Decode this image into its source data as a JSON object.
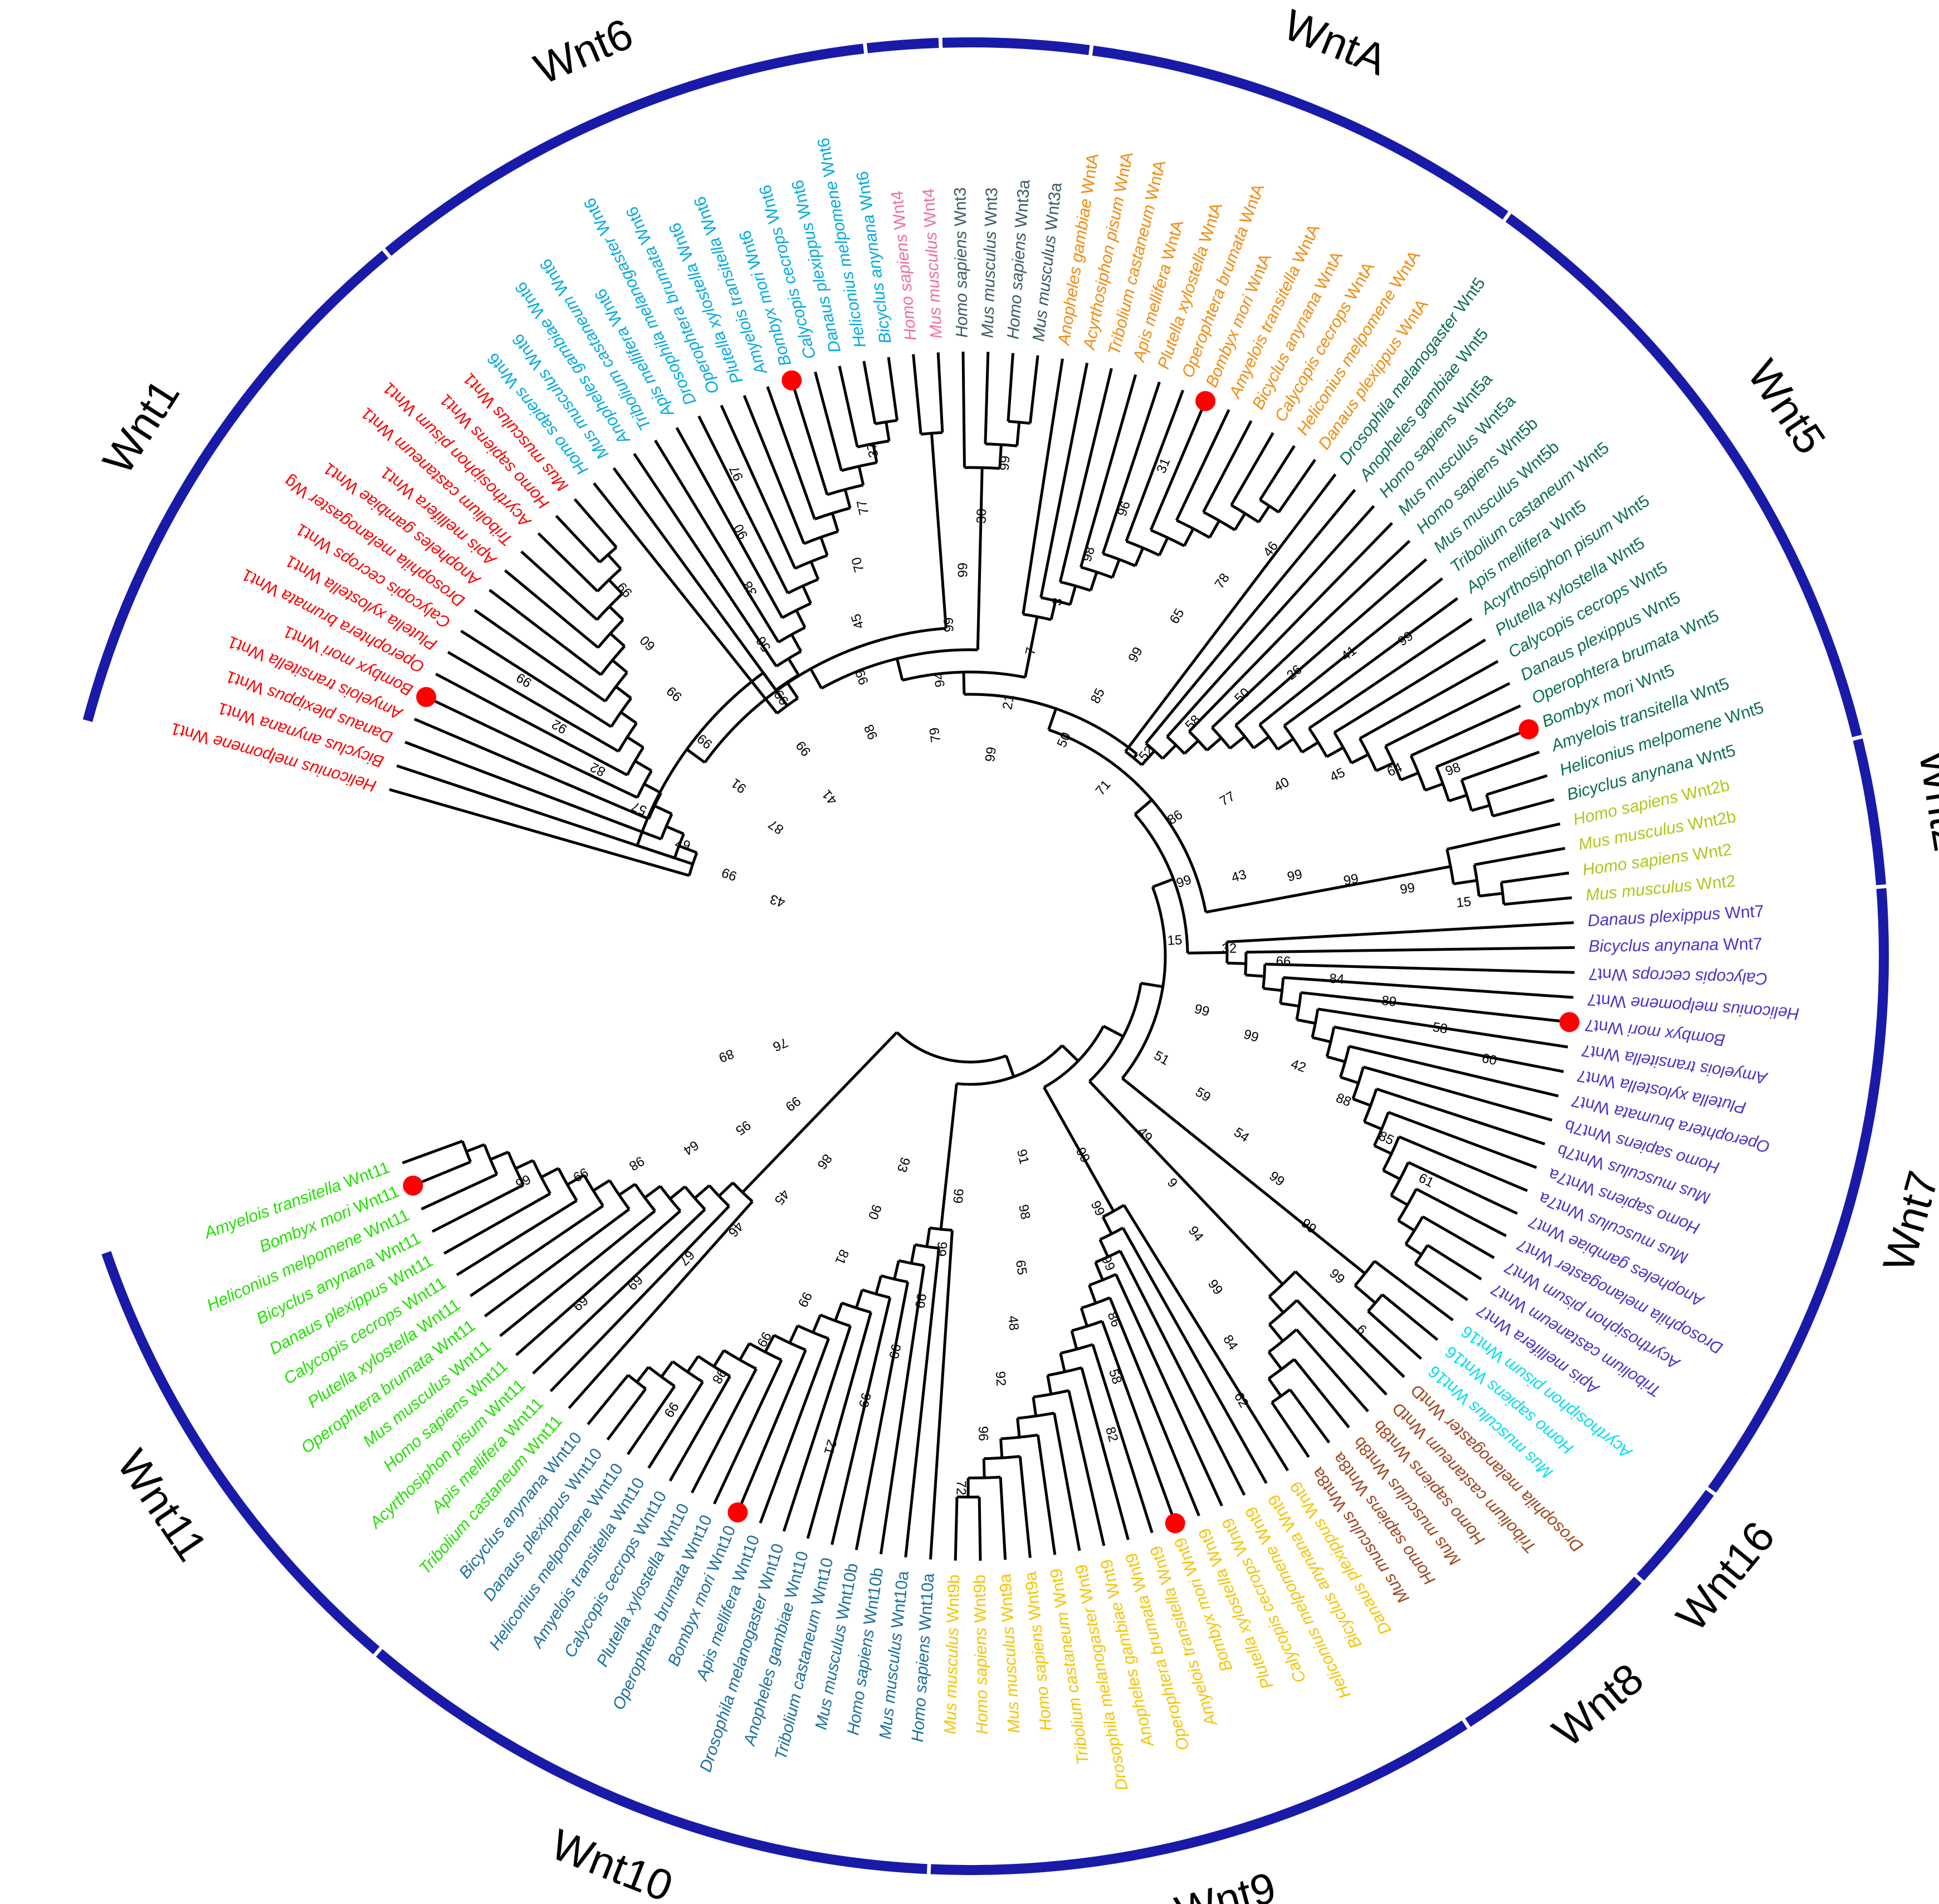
{
  "figure": {
    "marker_color": "#ff0000",
    "ring_color": "#1a1aa8",
    "branch_color": "#000000"
  },
  "groups": [
    {
      "name": "Wnt1",
      "color": "#ff0000"
    },
    {
      "name": "Wnt6",
      "color": "#00aadd"
    },
    {
      "name": "Wnt4",
      "color": "#ee6f9f"
    },
    {
      "name": "Wnt3",
      "color": "#3b5b63"
    },
    {
      "name": "WntA",
      "color": "#f28a0d"
    },
    {
      "name": "Wnt5",
      "color": "#0c6e4e"
    },
    {
      "name": "Wnt2",
      "color": "#b2c41a"
    },
    {
      "name": "Wnt7",
      "color": "#4b33c7"
    },
    {
      "name": "Wnt16",
      "color": "#00e0f0"
    },
    {
      "name": "Wnt8",
      "color": "#a0431b"
    },
    {
      "name": "Wnt9",
      "color": "#f5c400"
    },
    {
      "name": "Wnt10",
      "color": "#1c6f9a"
    },
    {
      "name": "Wnt11",
      "color": "#22e000"
    }
  ],
  "leaves": [
    {
      "species": "Heliconius melpomene",
      "gene": "Wnt1",
      "group": 0
    },
    {
      "species": "Bicyclus anynana",
      "gene": "Wnt1",
      "group": 0
    },
    {
      "species": "Danaus plexippus",
      "gene": "Wnt1",
      "group": 0
    },
    {
      "species": "Amyelois transitella",
      "gene": "Wnt1",
      "group": 0
    },
    {
      "species": "Bombyx mori",
      "gene": "Wnt1",
      "group": 0,
      "marked": true
    },
    {
      "species": "Operophtera brumata",
      "gene": "Wnt1",
      "group": 0
    },
    {
      "species": "Plutella xylostella",
      "gene": "Wnt1",
      "group": 0
    },
    {
      "species": "Calycopis cecrops",
      "gene": "Wnt1",
      "group": 0
    },
    {
      "species": "Drosophila melanogaster",
      "gene": "Wg",
      "group": 0
    },
    {
      "species": "Anopheles gambiae",
      "gene": "Wnt1",
      "group": 0
    },
    {
      "species": "Apis mellifera",
      "gene": "Wnt1",
      "group": 0
    },
    {
      "species": "Tribolium castaneum",
      "gene": "Wnt1",
      "group": 0
    },
    {
      "species": "Acyrthosiphon pisum",
      "gene": "Wnt1",
      "group": 0
    },
    {
      "species": "Homo sapiens",
      "gene": "Wnt1",
      "group": 0
    },
    {
      "species": "Mus musculus",
      "gene": "Wnt1",
      "group": 0
    },
    {
      "species": "Homo sapiens",
      "gene": "Wnt6",
      "group": 1
    },
    {
      "species": "Mus musculus",
      "gene": "Wnt6",
      "group": 1
    },
    {
      "species": "Anopheles gambiae",
      "gene": "Wnt6",
      "group": 1
    },
    {
      "species": "Tribolium castaneum",
      "gene": "Wnt6",
      "group": 1
    },
    {
      "species": "Apis mellifera",
      "gene": "Wnt6",
      "group": 1
    },
    {
      "species": "Drosophila melanogaster",
      "gene": "Wnt6",
      "group": 1
    },
    {
      "species": "Operophtera brumata",
      "gene": "Wnt6",
      "group": 1
    },
    {
      "species": "Plutella xylostella",
      "gene": "Wnt6",
      "group": 1
    },
    {
      "species": "Amyelois transitella",
      "gene": "Wnt6",
      "group": 1
    },
    {
      "species": "Bombyx mori",
      "gene": "Wnt6",
      "group": 1,
      "marked": true
    },
    {
      "species": "Calycopis cecrops",
      "gene": "Wnt6",
      "group": 1
    },
    {
      "species": "Danaus plexippus",
      "gene": "Wnt6",
      "group": 1
    },
    {
      "species": "Heliconius melpomene",
      "gene": "Wnt6",
      "group": 1
    },
    {
      "species": "Bicyclus anynana",
      "gene": "Wnt6",
      "group": 1
    },
    {
      "species": "Homo sapiens",
      "gene": "Wnt4",
      "group": 2
    },
    {
      "species": "Mus musculus",
      "gene": "Wnt4",
      "group": 2
    },
    {
      "species": "Homo sapiens",
      "gene": "Wnt3",
      "group": 3
    },
    {
      "species": "Mus musculus",
      "gene": "Wnt3",
      "group": 3
    },
    {
      "species": "Homo sapiens",
      "gene": "Wnt3a",
      "group": 3
    },
    {
      "species": "Mus musculus",
      "gene": "Wnt3a",
      "group": 3
    },
    {
      "species": "Anopheles gambiae",
      "gene": "WntA",
      "group": 4
    },
    {
      "species": "Acyrthosiphon pisum",
      "gene": "WntA",
      "group": 4
    },
    {
      "species": "Tribolium castaneum",
      "gene": "WntA",
      "group": 4
    },
    {
      "species": "Apis mellifera",
      "gene": "WntA",
      "group": 4
    },
    {
      "species": "Plutella xylostella",
      "gene": "WntA",
      "group": 4
    },
    {
      "species": "Operophtera brumata",
      "gene": "WntA",
      "group": 4
    },
    {
      "species": "Bombyx mori",
      "gene": "WntA",
      "group": 4,
      "marked": true
    },
    {
      "species": "Amyelois transitella",
      "gene": "WntA",
      "group": 4
    },
    {
      "species": "Bicyclus anynana",
      "gene": "WntA",
      "group": 4
    },
    {
      "species": "Calycopis cecrops",
      "gene": "WntA",
      "group": 4
    },
    {
      "species": "Heliconius melpomene",
      "gene": "WntA",
      "group": 4
    },
    {
      "species": "Danaus plexippus",
      "gene": "WntA",
      "group": 4
    },
    {
      "species": "Drosophila melanogaster",
      "gene": "Wnt5",
      "group": 5
    },
    {
      "species": "Anopheles gambiae",
      "gene": "Wnt5",
      "group": 5
    },
    {
      "species": "Homo sapiens",
      "gene": "Wnt5a",
      "group": 5
    },
    {
      "species": "Mus musculus",
      "gene": "Wnt5a",
      "group": 5
    },
    {
      "species": "Homo sapiens",
      "gene": "Wnt5b",
      "group": 5
    },
    {
      "species": "Mus musculus",
      "gene": "Wnt5b",
      "group": 5
    },
    {
      "species": "Tribolium castaneum",
      "gene": "Wnt5",
      "group": 5
    },
    {
      "species": "Apis mellifera",
      "gene": "Wnt5",
      "group": 5
    },
    {
      "species": "Acyrthosiphon pisum",
      "gene": "Wnt5",
      "group": 5
    },
    {
      "species": "Plutella xylostella",
      "gene": "Wnt5",
      "group": 5
    },
    {
      "species": "Calycopis cecrops",
      "gene": "Wnt5",
      "group": 5
    },
    {
      "species": "Danaus plexippus",
      "gene": "Wnt5",
      "group": 5
    },
    {
      "species": "Operophtera brumata",
      "gene": "Wnt5",
      "group": 5
    },
    {
      "species": "Bombyx mori",
      "gene": "Wnt5",
      "group": 5,
      "marked": true
    },
    {
      "species": "Amyelois transitella",
      "gene": "Wnt5",
      "group": 5
    },
    {
      "species": "Heliconius melpomene",
      "gene": "Wnt5",
      "group": 5
    },
    {
      "species": "Bicyclus anynana",
      "gene": "Wnt5",
      "group": 5
    },
    {
      "species": "Homo sapiens",
      "gene": "Wnt2b",
      "group": 6
    },
    {
      "species": "Mus musculus",
      "gene": "Wnt2b",
      "group": 6
    },
    {
      "species": "Homo sapiens",
      "gene": "Wnt2",
      "group": 6
    },
    {
      "species": "Mus musculus",
      "gene": "Wnt2",
      "group": 6
    },
    {
      "species": "Danaus plexippus",
      "gene": "Wnt7",
      "group": 7
    },
    {
      "species": "Bicyclus anynana",
      "gene": "Wnt7",
      "group": 7
    },
    {
      "species": "Calycopis cecrops",
      "gene": "Wnt7",
      "group": 7
    },
    {
      "species": "Heliconius melpomene",
      "gene": "Wnt7",
      "group": 7
    },
    {
      "species": "Bombyx mori",
      "gene": "Wnt7",
      "group": 7,
      "marked": true
    },
    {
      "species": "Amyelois transitella",
      "gene": "Wnt7",
      "group": 7
    },
    {
      "species": "Plutella xylostella",
      "gene": "Wnt7",
      "group": 7
    },
    {
      "species": "Operophtera brumata",
      "gene": "Wnt7",
      "group": 7
    },
    {
      "species": "Homo sapiens",
      "gene": "Wnt7b",
      "group": 7
    },
    {
      "species": "Mus musculus",
      "gene": "Wnt7b",
      "group": 7
    },
    {
      "species": "Homo sapiens",
      "gene": "Wnt7a",
      "group": 7
    },
    {
      "species": "Mus musculus",
      "gene": "Wnt7a",
      "group": 7
    },
    {
      "species": "Anopheles gambiae",
      "gene": "Wnt7",
      "group": 7
    },
    {
      "species": "Drosophila melanogaster",
      "gene": "Wnt7",
      "group": 7
    },
    {
      "species": "Acyrthosiphon pisum",
      "gene": "Wnt7",
      "group": 7
    },
    {
      "species": "Tribolium castaneum",
      "gene": "Wnt7",
      "group": 7
    },
    {
      "species": "Apis mellifera",
      "gene": "Wnt7",
      "group": 7
    },
    {
      "species": "Acyrthosiphon pisum",
      "gene": "Wnt16",
      "group": 8
    },
    {
      "species": "Homo sapiens",
      "gene": "Wnt16",
      "group": 8
    },
    {
      "species": "Mus musculus",
      "gene": "Wnt16",
      "group": 8
    },
    {
      "species": "Drosophila melanogaster",
      "gene": "WntD",
      "group": 9
    },
    {
      "species": "Tribolium castaneum",
      "gene": "WntD",
      "group": 9
    },
    {
      "species": "Homo sapiens",
      "gene": "Wnt8b",
      "group": 9
    },
    {
      "species": "Mus musculus",
      "gene": "Wnt8b",
      "group": 9
    },
    {
      "species": "Homo sapiens",
      "gene": "Wnt8a",
      "group": 9
    },
    {
      "species": "Mus musculus",
      "gene": "Wnt8a",
      "group": 9
    },
    {
      "species": "Danaus plexippus",
      "gene": "Wnt9",
      "group": 10
    },
    {
      "species": "Bicyclus anynana",
      "gene": "Wnt9",
      "group": 10
    },
    {
      "species": "Heliconius melpomene",
      "gene": "Wnt9",
      "group": 10
    },
    {
      "species": "Calycopis cecrops",
      "gene": "Wnt9",
      "group": 10
    },
    {
      "species": "Plutella xylostella",
      "gene": "Wnt9",
      "group": 10
    },
    {
      "species": "Bombyx mori",
      "gene": "Wnt9",
      "group": 10,
      "marked": true
    },
    {
      "species": "Amyelois transitella",
      "gene": "Wnt9",
      "group": 10
    },
    {
      "species": "Operophtera brumata",
      "gene": "Wnt9",
      "group": 10
    },
    {
      "species": "Anopheles gambiae",
      "gene": "Wnt9",
      "group": 10
    },
    {
      "species": "Drosophila melanogaster",
      "gene": "Wnt9",
      "group": 10
    },
    {
      "species": "Tribolium castaneum",
      "gene": "Wnt9",
      "group": 10
    },
    {
      "species": "Homo sapiens",
      "gene": "Wnt9a",
      "group": 10
    },
    {
      "species": "Mus musculus",
      "gene": "Wnt9a",
      "group": 10
    },
    {
      "species": "Homo sapiens",
      "gene": "Wnt9b",
      "group": 10
    },
    {
      "species": "Mus musculus",
      "gene": "Wnt9b",
      "group": 10
    },
    {
      "species": "Homo sapiens",
      "gene": "Wnt10a",
      "group": 11
    },
    {
      "species": "Mus musculus",
      "gene": "Wnt10a",
      "group": 11
    },
    {
      "species": "Homo sapiens",
      "gene": "Wnt10b",
      "group": 11
    },
    {
      "species": "Mus musculus",
      "gene": "Wnt10b",
      "group": 11
    },
    {
      "species": "Tribolium castaneum",
      "gene": "Wnt10",
      "group": 11
    },
    {
      "species": "Anopheles gambiae",
      "gene": "Wnt10",
      "group": 11
    },
    {
      "species": "Drosophila melanogaster",
      "gene": "Wnt10",
      "group": 11
    },
    {
      "species": "Apis mellifera",
      "gene": "Wnt10",
      "group": 11
    },
    {
      "species": "Bombyx mori",
      "gene": "Wnt10",
      "group": 11,
      "marked": true
    },
    {
      "species": "Operophtera brumata",
      "gene": "Wnt10",
      "group": 11
    },
    {
      "species": "Plutella xylostella",
      "gene": "Wnt10",
      "group": 11
    },
    {
      "species": "Calycopis cecrops",
      "gene": "Wnt10",
      "group": 11
    },
    {
      "species": "Amyelois transitella",
      "gene": "Wnt10",
      "group": 11
    },
    {
      "species": "Heliconius melpomene",
      "gene": "Wnt10",
      "group": 11
    },
    {
      "species": "Danaus plexippus",
      "gene": "Wnt10",
      "group": 11
    },
    {
      "species": "Bicyclus anynana",
      "gene": "Wnt10",
      "group": 11
    },
    {
      "species": "Tribolium castaneum",
      "gene": "Wnt11",
      "group": 12
    },
    {
      "species": "Apis mellifera",
      "gene": "Wnt11",
      "group": 12
    },
    {
      "species": "Acyrthosiphon pisum",
      "gene": "Wnt11",
      "group": 12
    },
    {
      "species": "Homo sapiens",
      "gene": "Wnt11",
      "group": 12
    },
    {
      "species": "Mus musculus",
      "gene": "Wnt11",
      "group": 12
    },
    {
      "species": "Operophtera brumata",
      "gene": "Wnt11",
      "group": 12
    },
    {
      "species": "Plutella xylostella",
      "gene": "Wnt11",
      "group": 12
    },
    {
      "species": "Calycopis cecrops",
      "gene": "Wnt11",
      "group": 12
    },
    {
      "species": "Danaus plexippus",
      "gene": "Wnt11",
      "group": 12
    },
    {
      "species": "Bicyclus anynana",
      "gene": "Wnt11",
      "group": 12
    },
    {
      "species": "Heliconius melpomene",
      "gene": "Wnt11",
      "group": 12
    },
    {
      "species": "Bombyx mori",
      "gene": "Wnt11",
      "group": 12,
      "marked": true
    },
    {
      "species": "Amyelois transitella",
      "gene": "Wnt11",
      "group": 12
    }
  ],
  "bootstrap_values": [
    "43",
    "99",
    "67",
    "57",
    "82",
    "92",
    "99",
    "87",
    "91",
    "99",
    "99",
    "60",
    "99",
    "41",
    "99",
    "99",
    "56",
    "38",
    "90",
    "97",
    "98",
    "99",
    "45",
    "70",
    "77",
    "37",
    "79",
    "94",
    "99",
    "99",
    "30",
    "99",
    "99",
    "21",
    "7",
    "3",
    "98",
    "96",
    "31",
    "50",
    "85",
    "99",
    "65",
    "78",
    "46",
    "71",
    "52",
    "58",
    "50",
    "26",
    "41",
    "99",
    "86",
    "77",
    "40",
    "45",
    "64",
    "98",
    "99",
    "43",
    "99",
    "99",
    "99",
    "15",
    "15",
    "32",
    "66",
    "84",
    "89",
    "58",
    "60",
    "99",
    "99",
    "42",
    "88",
    "85",
    "61",
    "51",
    "59",
    "54",
    "99",
    "99",
    "99",
    "6",
    "49",
    "9",
    "94",
    "99",
    "84",
    "62",
    "99",
    "99",
    "99",
    "86",
    "58",
    "82",
    "91",
    "98",
    "65",
    "48",
    "92",
    "96",
    "72",
    "99",
    "99",
    "99",
    "99",
    "99",
    "21",
    "93",
    "90",
    "81",
    "99",
    "99",
    "98",
    "99",
    "86",
    "45",
    "46",
    "67",
    "69",
    "69",
    "99",
    "95",
    "64",
    "98",
    "99",
    "66",
    "76",
    "89"
  ]
}
